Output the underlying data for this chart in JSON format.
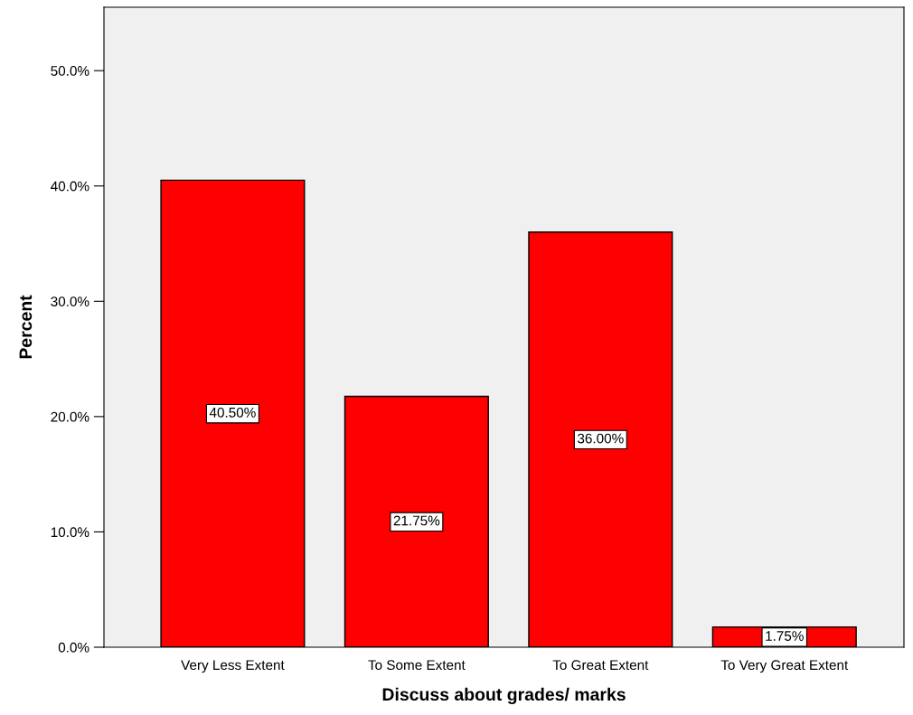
{
  "chart_data": {
    "type": "bar",
    "xlabel": "Discuss about grades/ marks",
    "ylabel": "Percent",
    "categories": [
      "Very Less Extent",
      "To Some Extent",
      "To Great Extent",
      "To Very Great Extent"
    ],
    "values": [
      40.5,
      21.75,
      36.0,
      1.75
    ],
    "value_labels": [
      "40.50%",
      "21.75%",
      "36.00%",
      "1.75%"
    ],
    "color": "#ff0000",
    "ylim": [
      0,
      55.5
    ],
    "yticks": [
      {
        "value": 0,
        "label": "0.0%"
      },
      {
        "value": 10,
        "label": "10.0%"
      },
      {
        "value": 20,
        "label": "20.0%"
      },
      {
        "value": 30,
        "label": "30.0%"
      },
      {
        "value": 40,
        "label": "40.0%"
      },
      {
        "value": 50,
        "label": "50.0%"
      }
    ],
    "grid": false,
    "legend": false
  }
}
